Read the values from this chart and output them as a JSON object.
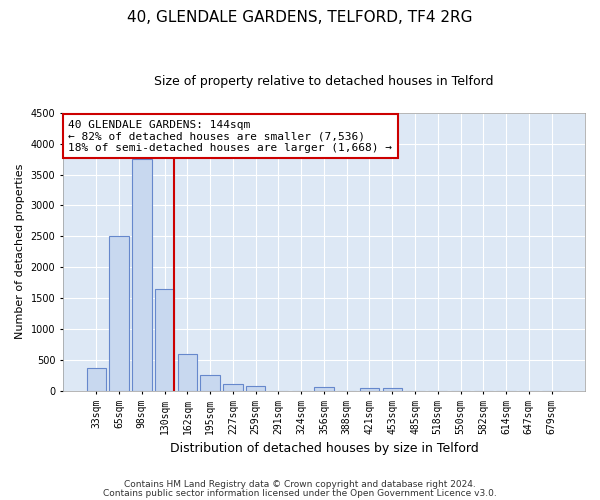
{
  "title1": "40, GLENDALE GARDENS, TELFORD, TF4 2RG",
  "title2": "Size of property relative to detached houses in Telford",
  "xlabel": "Distribution of detached houses by size in Telford",
  "ylabel": "Number of detached properties",
  "categories": [
    "33sqm",
    "65sqm",
    "98sqm",
    "130sqm",
    "162sqm",
    "195sqm",
    "227sqm",
    "259sqm",
    "291sqm",
    "324sqm",
    "356sqm",
    "388sqm",
    "421sqm",
    "453sqm",
    "485sqm",
    "518sqm",
    "550sqm",
    "582sqm",
    "614sqm",
    "647sqm",
    "679sqm"
  ],
  "values": [
    375,
    2500,
    3750,
    1650,
    600,
    250,
    110,
    75,
    0,
    0,
    65,
    0,
    50,
    50,
    0,
    0,
    0,
    0,
    0,
    0,
    0
  ],
  "bar_color": "#c8d8ef",
  "bar_edge_color": "#6688cc",
  "vline_x": 3.42,
  "vline_color": "#cc0000",
  "annotation_line1": "40 GLENDALE GARDENS: 144sqm",
  "annotation_line2": "← 82% of detached houses are smaller (7,536)",
  "annotation_line3": "18% of semi-detached houses are larger (1,668) →",
  "annotation_box_color": "#ffffff",
  "annotation_box_edge": "#cc0000",
  "ylim": [
    0,
    4500
  ],
  "yticks": [
    0,
    500,
    1000,
    1500,
    2000,
    2500,
    3000,
    3500,
    4000,
    4500
  ],
  "footer1": "Contains HM Land Registry data © Crown copyright and database right 2024.",
  "footer2": "Contains public sector information licensed under the Open Government Licence v3.0.",
  "plot_bg_color": "#dde8f5",
  "fig_bg_color": "#ffffff",
  "grid_color": "#ffffff",
  "title1_fontsize": 11,
  "title2_fontsize": 9,
  "xlabel_fontsize": 9,
  "ylabel_fontsize": 8,
  "tick_fontsize": 7,
  "footer_fontsize": 6.5,
  "annot_fontsize": 8
}
